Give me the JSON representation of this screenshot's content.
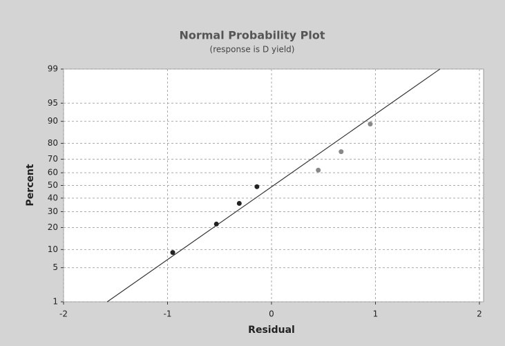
{
  "chart_data": {
    "type": "probability",
    "title": "Normal Probability Plot",
    "subtitle": "(response is D yield)",
    "x_label": "Residual",
    "y_label": "Percent",
    "x": [
      -0.95,
      -0.53,
      -0.31,
      -0.14,
      0.45,
      0.67,
      0.95
    ],
    "values": [
      9,
      22,
      36,
      49,
      62,
      75,
      89
    ],
    "point_colors": [
      "#222222",
      "#222222",
      "#222222",
      "#222222",
      "#888888",
      "#888888",
      "#888888"
    ],
    "fit_line": {
      "x": [
        -1.58,
        1.62
      ],
      "y": [
        1,
        99
      ],
      "color": "#333333"
    },
    "xlim": [
      -2,
      2.04
    ],
    "xticks": [
      -2,
      -1,
      0,
      1,
      2
    ],
    "ylim": [
      1,
      99
    ],
    "yticks": [
      1,
      5,
      10,
      20,
      30,
      40,
      50,
      60,
      70,
      80,
      90,
      95,
      99
    ],
    "grid": true
  }
}
